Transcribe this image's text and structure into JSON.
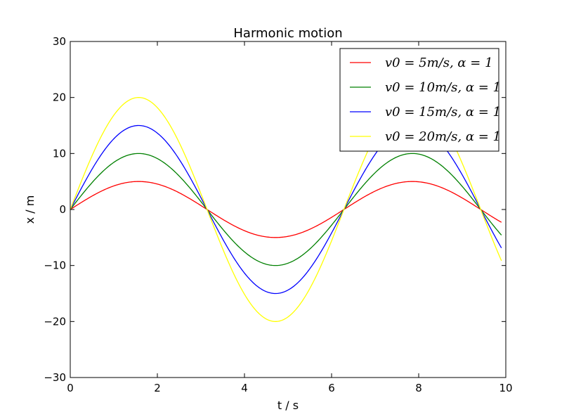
{
  "chart_data": {
    "type": "line",
    "title": "Harmonic motion",
    "xlabel": "t / s",
    "ylabel": "x / m",
    "xlim": [
      0,
      10
    ],
    "ylim": [
      -30,
      30
    ],
    "xticks": [
      0,
      2,
      4,
      6,
      8,
      10
    ],
    "yticks": [
      -30,
      -20,
      -10,
      0,
      10,
      20,
      30
    ],
    "xtick_labels": [
      "0",
      "2",
      "4",
      "6",
      "8",
      "10"
    ],
    "ytick_labels": [
      "−30",
      "−20",
      "−10",
      "0",
      "10",
      "20",
      "30"
    ],
    "grid": false,
    "legend_position": "top-right",
    "x_range": [
      0,
      9.9
    ],
    "function": "x = v0 * sin(alpha * t)",
    "series": [
      {
        "name": "v0 = 5m/s, α = 1",
        "amplitude": 5,
        "alpha": 1,
        "color": "#ff0000"
      },
      {
        "name": "v0 = 10m/s, α = 1",
        "amplitude": 10,
        "alpha": 1,
        "color": "#008000"
      },
      {
        "name": "v0 = 15m/s, α = 1",
        "amplitude": 15,
        "alpha": 1,
        "color": "#0000ff"
      },
      {
        "name": "v0 = 20m/s, α = 1",
        "amplitude": 20,
        "alpha": 1,
        "color": "#ffff00"
      }
    ]
  }
}
